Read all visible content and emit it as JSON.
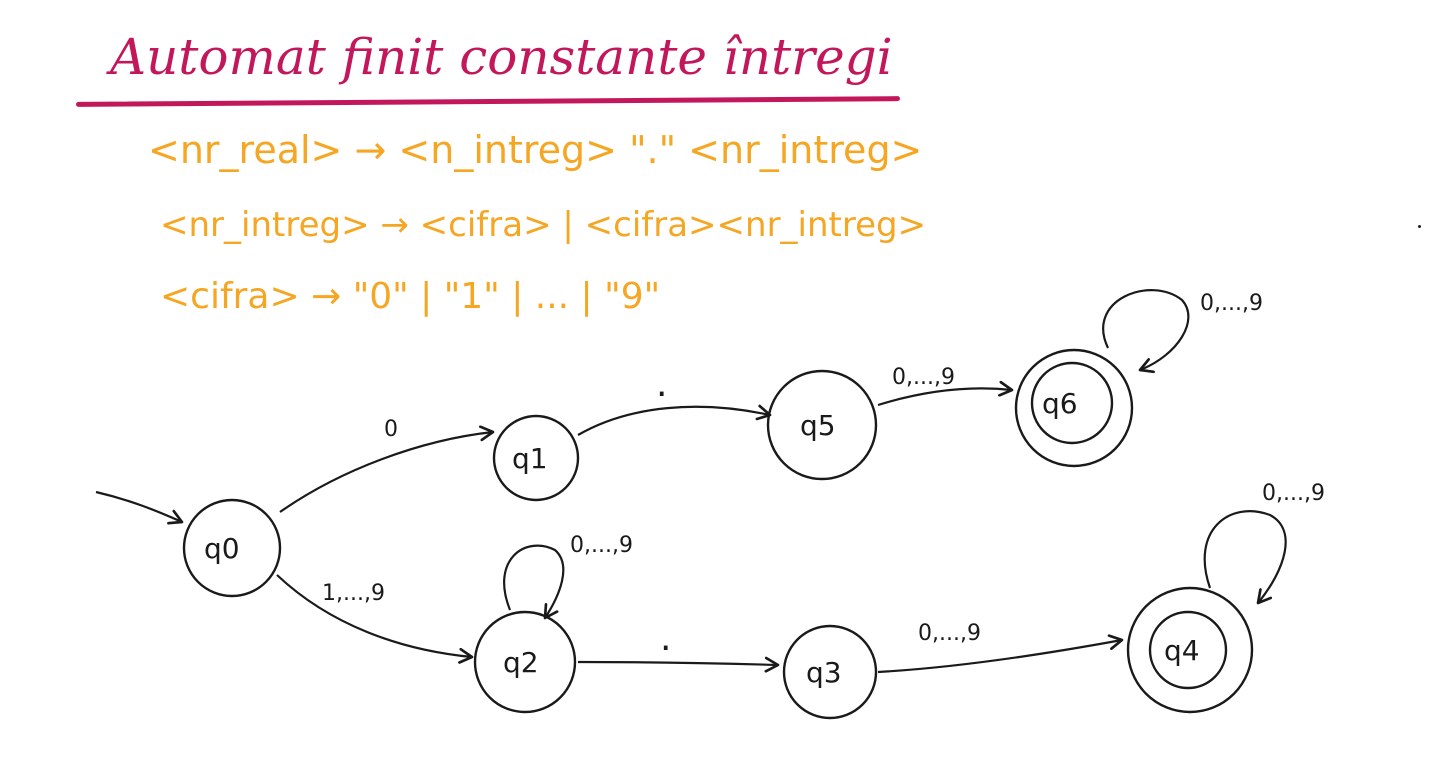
{
  "title": "Automat finit constante întregi",
  "colors": {
    "title": "#c2185b",
    "grammar": "#f5a623",
    "ink": "#1a1a1a"
  },
  "grammar": {
    "rule_1": "<nr_real> → <n_intreg> \".\" <nr_intreg>",
    "rule_2": "<nr_intreg> → <cifra> | <cifra><nr_intreg>",
    "rule_3": "<cifra> → \"0\" | \"1\" | ... | \"9\""
  },
  "automaton": {
    "states": {
      "q0": {
        "label": "q0",
        "final": false,
        "initial": true
      },
      "q1": {
        "label": "q1",
        "final": false
      },
      "q5": {
        "label": "q5",
        "final": false
      },
      "q6": {
        "label": "q6",
        "final": true
      },
      "q2": {
        "label": "q2",
        "final": false
      },
      "q3": {
        "label": "q3",
        "final": false
      },
      "q4": {
        "label": "q4",
        "final": true
      }
    },
    "transitions": {
      "q0_q1": {
        "from": "q0",
        "to": "q1",
        "label": "0"
      },
      "q0_q2": {
        "from": "q0",
        "to": "q2",
        "label": "1,...,9"
      },
      "q1_q5": {
        "from": "q1",
        "to": "q5",
        "label": "."
      },
      "q5_q6": {
        "from": "q5",
        "to": "q6",
        "label": "0,...,9"
      },
      "q6_q6": {
        "from": "q6",
        "to": "q6",
        "label": "0,...,9"
      },
      "q2_q2": {
        "from": "q2",
        "to": "q2",
        "label": "0,...,9"
      },
      "q2_q3": {
        "from": "q2",
        "to": "q3",
        "label": "."
      },
      "q3_q4": {
        "from": "q3",
        "to": "q4",
        "label": "0,...,9"
      },
      "q4_q4": {
        "from": "q4",
        "to": "q4",
        "label": "0,...,9"
      }
    }
  }
}
